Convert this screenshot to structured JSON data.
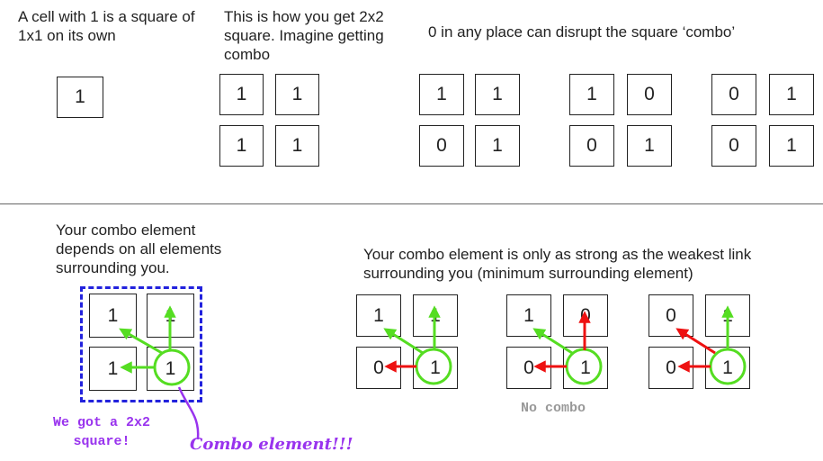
{
  "top": {
    "single": {
      "text": "A cell with 1 is a square of 1x1 on its own",
      "cell": "1"
    },
    "square": {
      "text": "This is how you get 2x2 square. Imagine getting combo",
      "cells": [
        "1",
        "1",
        "1",
        "1"
      ]
    },
    "disrupt": {
      "text": "0 in any place can disrupt the square ‘combo’",
      "grids": [
        [
          "1",
          "1",
          "0",
          "1"
        ],
        [
          "1",
          "0",
          "0",
          "1"
        ],
        [
          "0",
          "1",
          "0",
          "1"
        ]
      ]
    }
  },
  "bottom": {
    "left": {
      "text": "Your combo element depends on all elements surrounding you.",
      "cells": [
        "1",
        "1",
        "1",
        "1"
      ],
      "got_label": "We got a 2x2 square!",
      "combo_label": "Combo element!!!"
    },
    "right": {
      "text": "Your combo element is only as strong as the weakest link surrounding you (minimum surrounding element)",
      "grids": [
        [
          "1",
          "1",
          "0",
          "1"
        ],
        [
          "1",
          "0",
          "0",
          "1"
        ],
        [
          "0",
          "1",
          "0",
          "1"
        ]
      ],
      "no_combo": "No combo"
    }
  },
  "colors": {
    "green": "#55dd22",
    "red": "#ee1111",
    "blue": "#2222dd",
    "purple": "#9933ee",
    "gray": "#999999"
  }
}
